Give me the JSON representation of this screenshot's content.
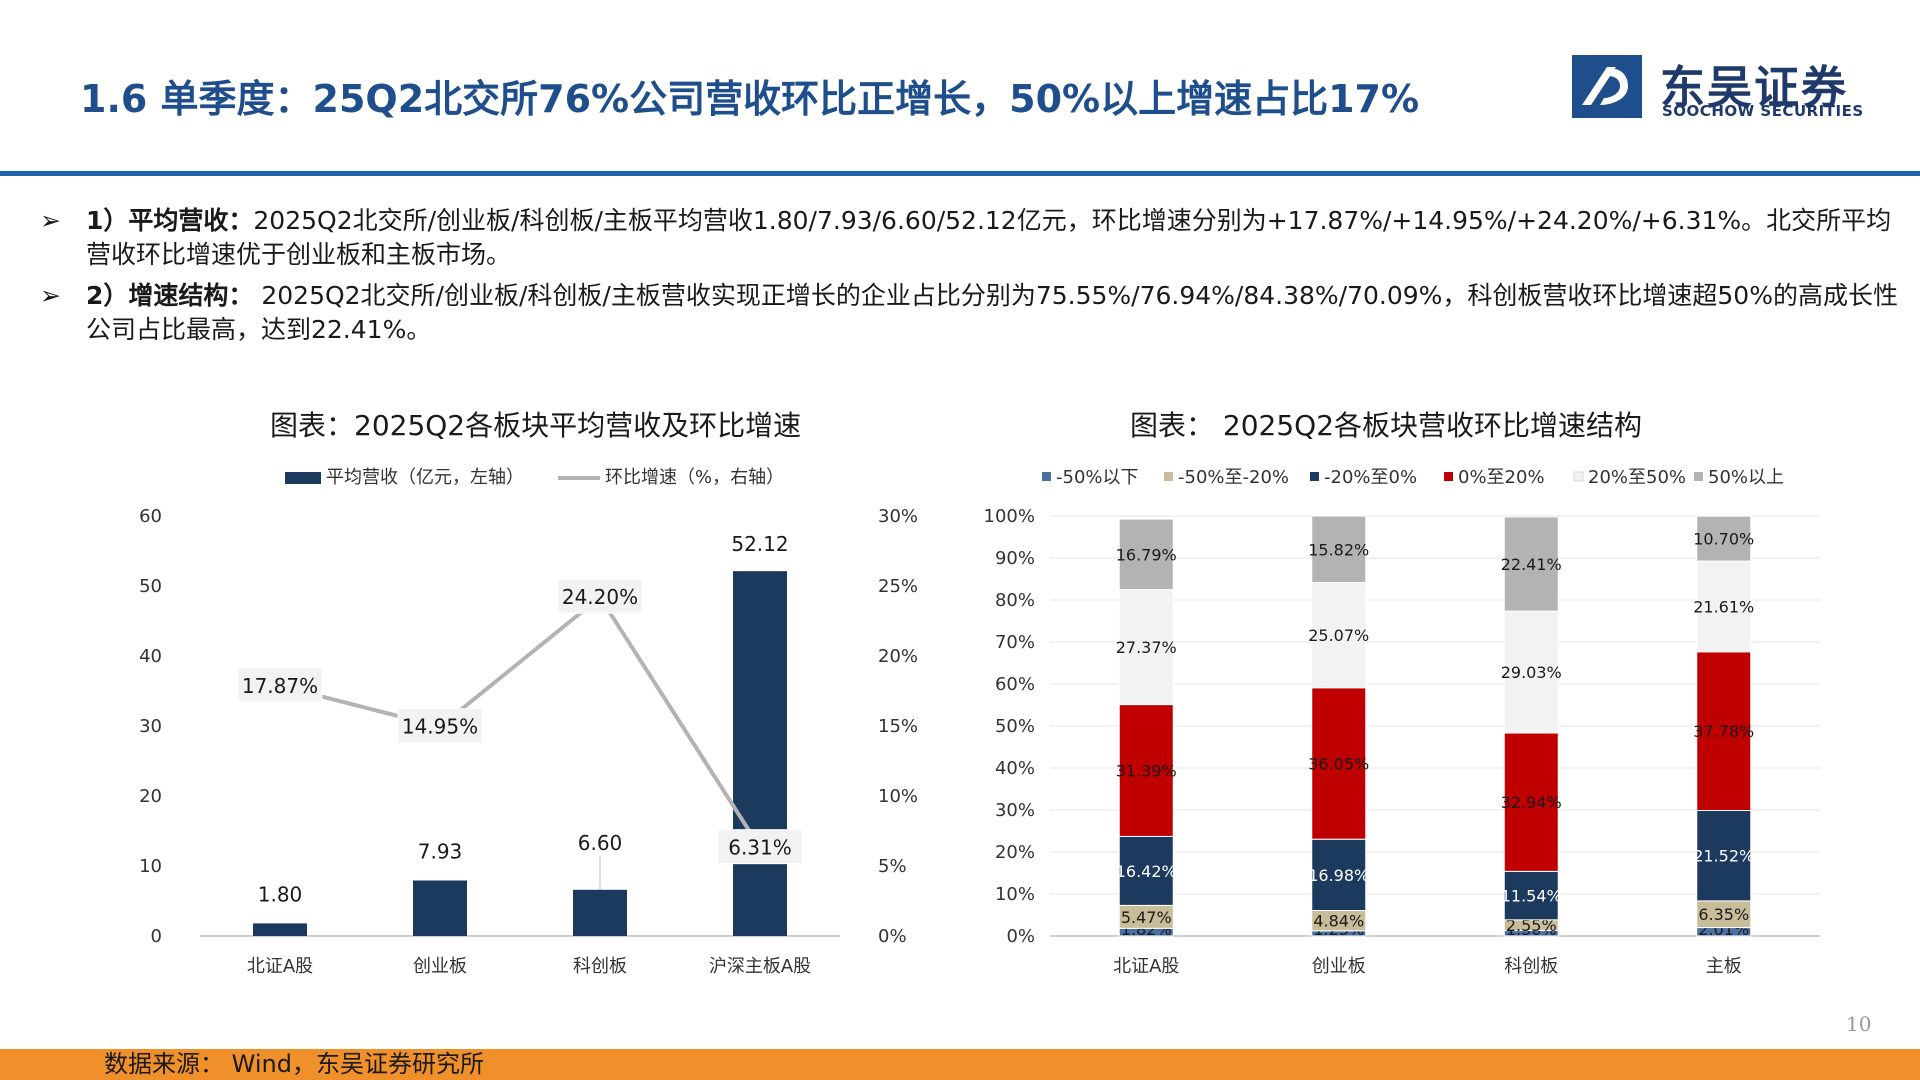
{
  "title": "1.6 单季度：25Q2北交所76%公司营收环比正增长，50%以上增速占比17%",
  "logo": {
    "cn": "东吴证券",
    "en": "SOOCHOW SECURITIES"
  },
  "bullets": [
    {
      "arrow": "➢",
      "lead": "1）平均营收：",
      "text": "2025Q2北交所/创业板/科创板/主板平均营收1.80/7.93/6.60/52.12亿元，环比增速分别为+17.87%/+14.95%/+24.20%/+6.31%。北交所平均营收环比增速优于创业板和主板市场。"
    },
    {
      "arrow": "➢",
      "lead": "2）增速结构：",
      "text": " 2025Q2北交所/创业板/科创板/主板营收实现正增长的企业占比分别为75.55%/76.94%/84.38%/70.09%，科创板营收环比增速超50%的高成长性公司占比最高，达到22.41%。"
    }
  ],
  "chart_data": [
    {
      "type": "bar",
      "title": "图表：2025Q2各板块平均营收及环比增速",
      "categories": [
        "北证A股",
        "创业板",
        "科创板",
        "沪深主板A股"
      ],
      "series": [
        {
          "name": "平均营收（亿元，左轴）",
          "type": "bar",
          "axis": "left",
          "color": "#1b3a5e",
          "values": [
            1.8,
            7.93,
            6.6,
            52.12
          ],
          "labels": [
            "1.80",
            "7.93",
            "6.60",
            "52.12"
          ]
        },
        {
          "name": "环比增速（%，右轴）",
          "type": "line",
          "axis": "right",
          "color": "#b3b3b3",
          "values": [
            17.87,
            14.95,
            24.2,
            6.31
          ],
          "labels": [
            "17.87%",
            "14.95%",
            "24.20%",
            "6.31%"
          ]
        }
      ],
      "yleft": {
        "ylim": [
          0,
          60
        ],
        "ticks": [
          "0",
          "10",
          "20",
          "30",
          "40",
          "50",
          "60"
        ]
      },
      "yright": {
        "ylim": [
          0,
          30
        ],
        "ticks": [
          "0%",
          "5%",
          "10%",
          "15%",
          "20%",
          "25%",
          "30%"
        ]
      },
      "legend": "top-center",
      "grid": false
    },
    {
      "type": "bar",
      "stacked": true,
      "title": "图表： 2025Q2各板块营收环比增速结构",
      "categories": [
        "北证A股",
        "创业板",
        "科创板",
        "主板"
      ],
      "series": [
        {
          "name": "-50%以下",
          "color": "#4a6fa5",
          "label_color": "#1a1a1a",
          "values": [
            1.82,
            1.23,
            1.3,
            2.01
          ],
          "labels": [
            "1.82%",
            "1.23%",
            "1.30%",
            "2.01%"
          ]
        },
        {
          "name": "-50%至-20%",
          "color": "#c8bc99",
          "label_color": "#1a1a1a",
          "values": [
            5.47,
            4.84,
            2.55,
            6.35
          ],
          "labels": [
            "5.47%",
            "4.84%",
            "2.55%",
            "6.35%"
          ]
        },
        {
          "name": "-20%至0%",
          "color": "#1b3a5e",
          "label_color": "#ffffff",
          "values": [
            16.42,
            16.98,
            11.54,
            21.52
          ],
          "labels": [
            "16.42%",
            "16.98%",
            "11.54%",
            "21.52%"
          ]
        },
        {
          "name": "0%至20%",
          "color": "#c00000",
          "label_color": "#1a1a1a",
          "values": [
            31.39,
            36.05,
            32.94,
            37.78
          ],
          "labels": [
            "31.39%",
            "36.05%",
            "32.94%",
            "37.78%"
          ]
        },
        {
          "name": "20%至50%",
          "color": "#f2f2f2",
          "label_color": "#1a1a1a",
          "values": [
            27.37,
            25.07,
            29.03,
            21.61
          ],
          "labels": [
            "27.37%",
            "25.07%",
            "29.03%",
            "21.61%"
          ]
        },
        {
          "name": "50%以上",
          "color": "#b3b3b3",
          "label_color": "#1a1a1a",
          "values": [
            16.79,
            15.82,
            22.41,
            10.7
          ],
          "labels": [
            "16.79%",
            "15.82%",
            "22.41%",
            "10.70%"
          ]
        }
      ],
      "ylim": [
        0,
        100
      ],
      "yticks": [
        "0%",
        "10%",
        "20%",
        "30%",
        "40%",
        "50%",
        "60%",
        "70%",
        "80%",
        "90%",
        "100%"
      ],
      "legend": "top",
      "grid": true
    }
  ],
  "page_number": "10",
  "source": "数据来源： Wind，东吴证券研究所",
  "colors": {
    "title": "#1f4e8c",
    "rule": "#1f65a8",
    "footer": "#f0902a",
    "navy": "#1b3a5e"
  }
}
